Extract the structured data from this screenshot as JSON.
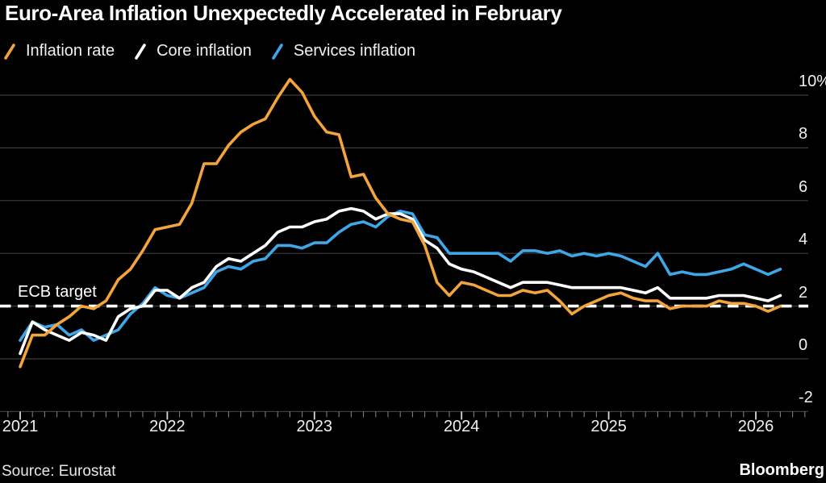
{
  "page": {
    "background": "#000000",
    "grid_color": "#3d3d3d"
  },
  "header": {
    "title": "Euro-Area Inflation Unexpectedly Accelerated in February"
  },
  "legend": {
    "items": [
      {
        "label": "Inflation rate",
        "color": "#F4A43C"
      },
      {
        "label": "Core inflation",
        "color": "#FFFFFF"
      },
      {
        "label": "Services inflation",
        "color": "#3FA6E8"
      }
    ]
  },
  "annotations": {
    "ecb_target_label": "ECB target"
  },
  "footer": {
    "source": "Source: Eurostat",
    "brand": "Bloomberg"
  },
  "chart_data": {
    "type": "line",
    "unit": "%",
    "title": "Euro-Area Inflation Unexpectedly Accelerated in February",
    "x_months": [
      "2020-12",
      "2021-01",
      "2021-02",
      "2021-03",
      "2021-04",
      "2021-05",
      "2021-06",
      "2021-07",
      "2021-08",
      "2021-09",
      "2021-10",
      "2021-11",
      "2021-12",
      "2022-01",
      "2022-02",
      "2022-03",
      "2022-04",
      "2022-05",
      "2022-06",
      "2022-07",
      "2022-08",
      "2022-09",
      "2022-10",
      "2022-11",
      "2022-12",
      "2023-01",
      "2023-02",
      "2023-03",
      "2023-04",
      "2023-05",
      "2023-06",
      "2023-07",
      "2023-08",
      "2023-09",
      "2023-10",
      "2023-11",
      "2023-12",
      "2024-01",
      "2024-02",
      "2024-03",
      "2024-04",
      "2024-05",
      "2024-06",
      "2024-07",
      "2024-08",
      "2024-09",
      "2024-10",
      "2024-11",
      "2024-12",
      "2025-01",
      "2025-02",
      "2025-03",
      "2025-04",
      "2025-05",
      "2025-06",
      "2025-07",
      "2025-08",
      "2025-09",
      "2025-10",
      "2025-11",
      "2025-12",
      "2026-01",
      "2026-02"
    ],
    "series": [
      {
        "name": "Inflation rate",
        "color": "#F4A43C",
        "values": [
          -0.3,
          0.9,
          0.9,
          1.3,
          1.6,
          2.0,
          1.9,
          2.2,
          3.0,
          3.4,
          4.1,
          4.9,
          5.0,
          5.1,
          5.9,
          7.4,
          7.4,
          8.1,
          8.6,
          8.9,
          9.1,
          9.9,
          10.6,
          10.1,
          9.2,
          8.6,
          8.5,
          6.9,
          7.0,
          6.1,
          5.5,
          5.3,
          5.2,
          4.3,
          2.9,
          2.4,
          2.9,
          2.8,
          2.6,
          2.4,
          2.4,
          2.6,
          2.5,
          2.6,
          2.2,
          1.7,
          2.0,
          2.2,
          2.4,
          2.5,
          2.3,
          2.2,
          2.2,
          1.9,
          2.0,
          2.0,
          2.0,
          2.2,
          2.1,
          2.1,
          2.0,
          1.8,
          2.0
        ]
      },
      {
        "name": "Core inflation",
        "color": "#FFFFFF",
        "values": [
          0.2,
          1.4,
          1.1,
          0.9,
          0.7,
          1.0,
          0.9,
          0.7,
          1.6,
          1.9,
          2.0,
          2.6,
          2.6,
          2.3,
          2.7,
          2.9,
          3.5,
          3.8,
          3.7,
          4.0,
          4.3,
          4.8,
          5.0,
          5.0,
          5.2,
          5.3,
          5.6,
          5.7,
          5.6,
          5.3,
          5.5,
          5.5,
          5.3,
          4.5,
          4.2,
          3.6,
          3.4,
          3.3,
          3.1,
          2.9,
          2.7,
          2.9,
          2.9,
          2.9,
          2.8,
          2.7,
          2.7,
          2.7,
          2.7,
          2.7,
          2.6,
          2.5,
          2.7,
          2.3,
          2.3,
          2.3,
          2.3,
          2.4,
          2.4,
          2.4,
          2.3,
          2.2,
          2.4
        ]
      },
      {
        "name": "Services inflation",
        "color": "#3FA6E8",
        "values": [
          0.7,
          1.4,
          1.2,
          1.3,
          0.9,
          1.1,
          0.7,
          0.9,
          1.1,
          1.7,
          2.1,
          2.7,
          2.4,
          2.3,
          2.5,
          2.7,
          3.3,
          3.5,
          3.4,
          3.7,
          3.8,
          4.3,
          4.3,
          4.2,
          4.4,
          4.4,
          4.8,
          5.1,
          5.2,
          5.0,
          5.4,
          5.6,
          5.5,
          4.7,
          4.6,
          4.0,
          4.0,
          4.0,
          4.0,
          4.0,
          3.7,
          4.1,
          4.1,
          4.0,
          4.1,
          3.9,
          4.0,
          3.9,
          4.0,
          3.9,
          3.7,
          3.5,
          4.0,
          3.2,
          3.3,
          3.2,
          3.2,
          3.3,
          3.4,
          3.6,
          3.4,
          3.2,
          3.4
        ]
      }
    ],
    "draw_order": [
      2,
      1,
      0
    ],
    "ylim": [
      -2.6,
      10.9
    ],
    "yticks": [
      {
        "v": 10,
        "label": "10%"
      },
      {
        "v": 8,
        "label": "8"
      },
      {
        "v": 6,
        "label": "6"
      },
      {
        "v": 4,
        "label": "4"
      },
      {
        "v": 2,
        "label": "2"
      },
      {
        "v": 0,
        "label": "0"
      },
      {
        "v": -2,
        "label": "-2"
      }
    ],
    "xticks_years": [
      "2021",
      "2022",
      "2023",
      "2024",
      "2025",
      "2026"
    ],
    "target_line": {
      "value": 2,
      "label": "ECB target",
      "style": "dashed",
      "color": "#FFFFFF"
    },
    "grid": true,
    "legend_position": "top-left",
    "y_axis_side": "right"
  }
}
